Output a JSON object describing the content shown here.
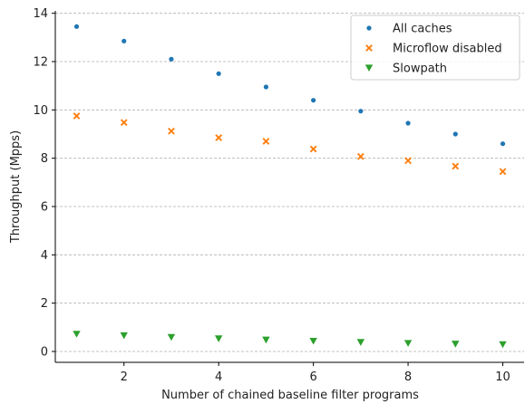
{
  "chart_data": {
    "type": "scatter",
    "title": "",
    "xlabel": "Number of chained baseline filter programs",
    "ylabel": "Throughput (Mpps)",
    "xlim": [
      0.55,
      10.45
    ],
    "ylim": [
      -0.45,
      14.1
    ],
    "xticks": [
      2,
      4,
      6,
      8,
      10
    ],
    "yticks": [
      0,
      2,
      4,
      6,
      8,
      10,
      12,
      14
    ],
    "grid": "horizontal-dashed",
    "legend_position": "top-right",
    "x": [
      1,
      2,
      3,
      4,
      5,
      6,
      7,
      8,
      9,
      10
    ],
    "series": [
      {
        "name": "All caches",
        "marker": "dot",
        "color": "#1f77b4",
        "values": [
          13.45,
          12.85,
          12.1,
          11.5,
          10.95,
          10.4,
          9.95,
          9.45,
          9.0,
          8.6
        ]
      },
      {
        "name": "Microflow disabled",
        "marker": "x",
        "color": "#ff7f0e",
        "values": [
          9.75,
          9.48,
          9.12,
          8.85,
          8.7,
          8.38,
          8.07,
          7.9,
          7.67,
          7.45
        ]
      },
      {
        "name": "Slowpath",
        "marker": "triangle-down",
        "color": "#2ca02c",
        "values": [
          0.72,
          0.66,
          0.59,
          0.53,
          0.48,
          0.43,
          0.38,
          0.34,
          0.31,
          0.29
        ]
      }
    ]
  }
}
